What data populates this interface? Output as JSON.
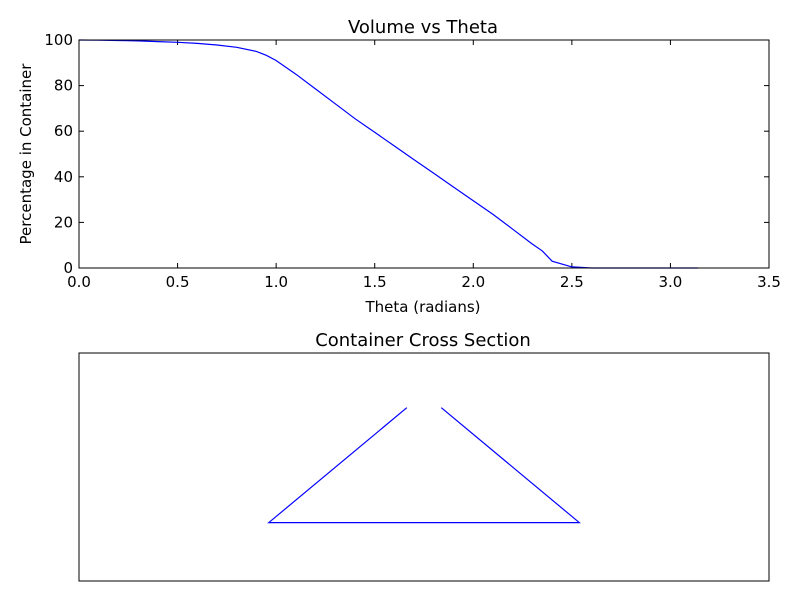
{
  "chart_data": [
    {
      "type": "line",
      "title": "Volume vs Theta",
      "xlabel": "Theta (radians)",
      "ylabel": "Percentage in Container",
      "xlim": [
        0.0,
        3.5
      ],
      "ylim": [
        0,
        100
      ],
      "x_ticks": [
        "0.0",
        "0.5",
        "1.0",
        "1.5",
        "2.0",
        "2.5",
        "3.0",
        "3.5"
      ],
      "y_ticks": [
        "0",
        "20",
        "40",
        "60",
        "80",
        "100"
      ],
      "grid": false,
      "color": "#0000ff",
      "series": [
        {
          "x": [
            0.0,
            0.1,
            0.2,
            0.3,
            0.4,
            0.5,
            0.6,
            0.7,
            0.8,
            0.9,
            0.95,
            1.0,
            1.1,
            1.2,
            1.3,
            1.4,
            1.5,
            1.6,
            1.7,
            1.8,
            1.9,
            2.0,
            2.1,
            2.2,
            2.3,
            2.35,
            2.4,
            2.5,
            2.6,
            2.8,
            3.0,
            3.14
          ],
          "y": [
            100,
            99.9,
            99.8,
            99.6,
            99.3,
            99.0,
            98.5,
            97.8,
            96.8,
            95.0,
            93.3,
            91.0,
            85.0,
            78.5,
            72.0,
            65.5,
            59.5,
            53.5,
            47.5,
            41.5,
            35.5,
            29.5,
            23.5,
            17.0,
            10.5,
            7.5,
            3.0,
            0.5,
            0,
            0,
            0,
            0
          ]
        }
      ]
    },
    {
      "type": "line",
      "title": "Container Cross Section",
      "xlabel": "",
      "ylabel": "",
      "x_ticks": [],
      "y_ticks": [],
      "grid": false,
      "color": "#0000ff",
      "xlim": [
        -1.6,
        1.6
      ],
      "ylim": [
        -0.8,
        0.45
      ],
      "series": [
        {
          "x": [
            -0.08,
            -0.72,
            0.72,
            0.08
          ],
          "y": [
            0.15,
            -0.48,
            -0.48,
            0.15
          ]
        }
      ]
    }
  ]
}
